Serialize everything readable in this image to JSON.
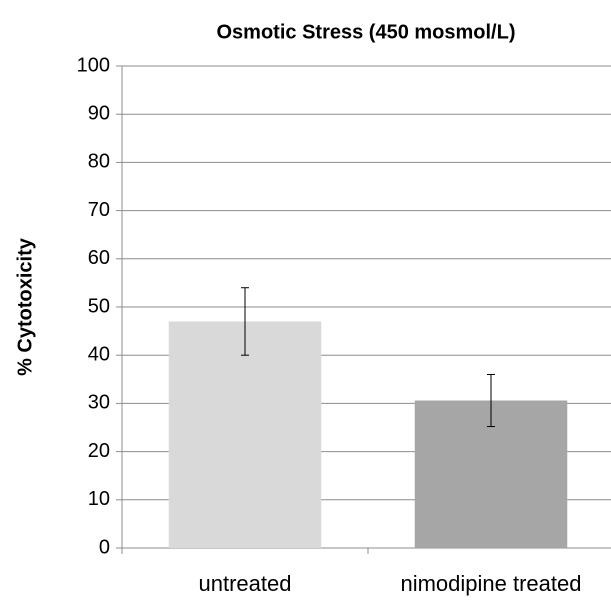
{
  "chart_data": {
    "type": "bar",
    "title": "Osmotic Stress (450 mosmol/L)",
    "ylabel": "% Cytotoxicity",
    "categories": [
      "untreated",
      "nimodipine treated"
    ],
    "values": [
      47,
      30.6
    ],
    "errors": [
      7,
      5.4
    ],
    "colors": [
      "#d9d9d9",
      "#a6a6a6"
    ],
    "ylim": [
      0,
      100
    ],
    "yticks": [
      0,
      10,
      20,
      30,
      40,
      50,
      60,
      70,
      80,
      90,
      100
    ],
    "grid": true
  }
}
